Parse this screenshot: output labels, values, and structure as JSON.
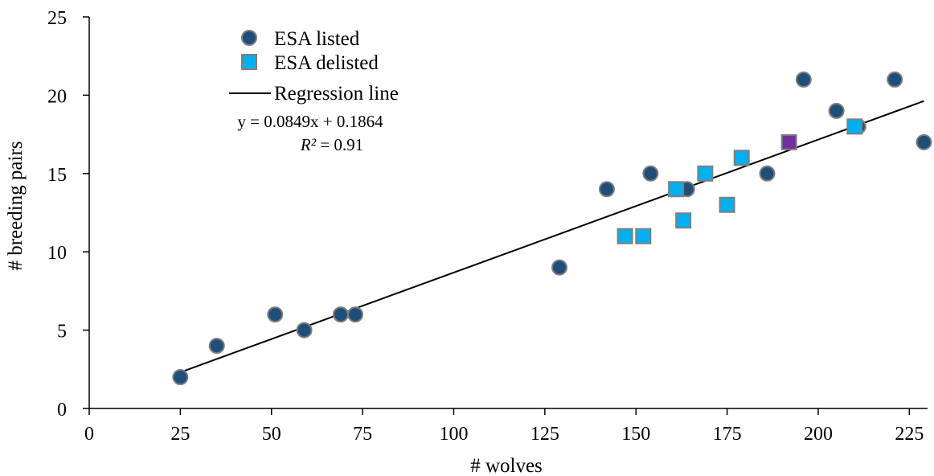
{
  "chart_data": {
    "type": "scatter",
    "title": "",
    "xlabel": "# wolves",
    "ylabel": "# breeding pairs",
    "xlim": [
      0,
      230
    ],
    "ylim": [
      0,
      25
    ],
    "x_ticks": [
      0,
      25,
      50,
      75,
      100,
      125,
      150,
      175,
      200,
      225
    ],
    "y_ticks": [
      0,
      5,
      10,
      15,
      20,
      25
    ],
    "grid": false,
    "legend_position": "top-left",
    "series": [
      {
        "name": "ESA listed",
        "marker": "circle",
        "color": "#1F4E79",
        "points": [
          {
            "x": 25,
            "y": 2
          },
          {
            "x": 35,
            "y": 4
          },
          {
            "x": 51,
            "y": 6
          },
          {
            "x": 59,
            "y": 5
          },
          {
            "x": 69,
            "y": 6
          },
          {
            "x": 73,
            "y": 6
          },
          {
            "x": 129,
            "y": 9
          },
          {
            "x": 142,
            "y": 14
          },
          {
            "x": 154,
            "y": 15
          },
          {
            "x": 164,
            "y": 14
          },
          {
            "x": 186,
            "y": 15
          },
          {
            "x": 196,
            "y": 21
          },
          {
            "x": 205,
            "y": 19
          },
          {
            "x": 211,
            "y": 18
          },
          {
            "x": 221,
            "y": 21
          },
          {
            "x": 229,
            "y": 17
          }
        ]
      },
      {
        "name": "ESA delisted",
        "marker": "square",
        "color": "#00B0F0",
        "points": [
          {
            "x": 147,
            "y": 11
          },
          {
            "x": 152,
            "y": 11
          },
          {
            "x": 161,
            "y": 14
          },
          {
            "x": 163,
            "y": 12
          },
          {
            "x": 169,
            "y": 15
          },
          {
            "x": 175,
            "y": 13
          },
          {
            "x": 179,
            "y": 16
          },
          {
            "x": 210,
            "y": 18
          }
        ]
      },
      {
        "marker": "square",
        "color": "#7030A0",
        "points": [
          {
            "x": 192,
            "y": 17
          }
        ]
      }
    ],
    "regression": {
      "name": "Regression line",
      "slope": 0.0849,
      "intercept": 0.1864,
      "x_range": [
        25,
        229
      ],
      "equation": "y = 0.0849x + 0.1864",
      "r2_symbol": "R²",
      "r2_value": " = 0.91"
    }
  }
}
